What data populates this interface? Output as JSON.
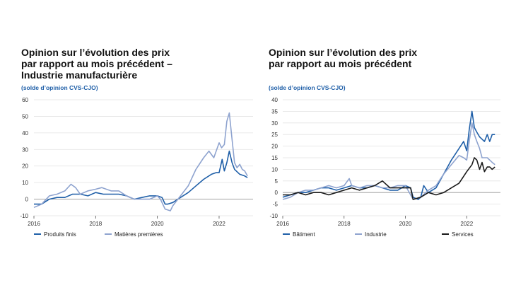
{
  "colors": {
    "dark_blue": "#1f5fa8",
    "light_blue": "#8ea3cf",
    "black": "#1a1a1a",
    "grid": "#e2e2e2"
  },
  "left": {
    "title_lines": [
      "Opinion sur l’évolution des prix",
      "par rapport au mois précédent –",
      "Industrie manufacturière"
    ],
    "subtitle": "(solde d’opinion CVS-CJO)"
  },
  "right": {
    "title_lines": [
      "Opinion sur l’évolution des prix",
      "par rapport au mois précédent"
    ],
    "subtitle": "(solde d’opinion CVS-CJO)"
  },
  "chart_data": [
    {
      "type": "line",
      "title": "Opinion sur l’évolution des prix par rapport au mois précédent – Industrie manufacturière",
      "subtitle": "(solde d’opinion CVS-CJO)",
      "xlim": [
        2016,
        2023.1
      ],
      "ylim": [
        -10,
        60
      ],
      "yticks": [
        -10,
        0,
        10,
        20,
        30,
        40,
        50,
        60
      ],
      "xticks": [
        2016,
        2018,
        2020,
        2022
      ],
      "legend_position": "bottom",
      "series": [
        {
          "name": "Produits finis",
          "color": "#1f5fa8",
          "x": [
            2016.0,
            2016.25,
            2016.5,
            2016.75,
            2017.0,
            2017.25,
            2017.5,
            2017.75,
            2018.0,
            2018.25,
            2018.5,
            2018.75,
            2019.0,
            2019.25,
            2019.5,
            2019.75,
            2020.0,
            2020.15,
            2020.25,
            2020.33,
            2020.5,
            2020.75,
            2021.0,
            2021.25,
            2021.5,
            2021.75,
            2021.9,
            2022.0,
            2022.1,
            2022.17,
            2022.25,
            2022.33,
            2022.42,
            2022.5,
            2022.67,
            2022.83,
            2022.92
          ],
          "y": [
            -3,
            -3,
            0,
            1,
            1,
            3,
            3,
            2,
            4,
            3,
            3,
            3,
            2,
            0,
            1,
            2,
            2,
            1,
            -3,
            -3,
            -2,
            1,
            4,
            8,
            12,
            15,
            16,
            16,
            24,
            17,
            22,
            29,
            22,
            18,
            15,
            14,
            13
          ]
        },
        {
          "name": "Matières premières",
          "color": "#8ea3cf",
          "x": [
            2016.0,
            2016.25,
            2016.5,
            2016.75,
            2017.0,
            2017.2,
            2017.35,
            2017.5,
            2017.75,
            2018.0,
            2018.2,
            2018.5,
            2018.75,
            2019.0,
            2019.25,
            2019.5,
            2019.75,
            2020.0,
            2020.1,
            2020.25,
            2020.42,
            2020.5,
            2020.75,
            2021.0,
            2021.25,
            2021.5,
            2021.67,
            2021.83,
            2022.0,
            2022.08,
            2022.17,
            2022.25,
            2022.33,
            2022.42,
            2022.5,
            2022.58,
            2022.67,
            2022.75,
            2022.83,
            2022.92
          ],
          "y": [
            -5,
            -3,
            2,
            3,
            5,
            9,
            7,
            3,
            5,
            6,
            7,
            5,
            5,
            2,
            0,
            0,
            0,
            2,
            0,
            -6,
            -7,
            -4,
            2,
            8,
            18,
            25,
            29,
            25,
            34,
            31,
            33,
            47,
            52,
            36,
            22,
            19,
            21,
            18,
            17,
            14
          ]
        }
      ]
    },
    {
      "type": "line",
      "title": "Opinion sur l’évolution des prix par rapport au mois précédent",
      "subtitle": "(solde d’opinion CVS-CJO)",
      "xlim": [
        2016,
        2023.1
      ],
      "ylim": [
        -10,
        40
      ],
      "yticks": [
        -10,
        -5,
        0,
        5,
        10,
        15,
        20,
        25,
        30,
        35,
        40
      ],
      "xticks": [
        2016,
        2018,
        2020,
        2022
      ],
      "legend_position": "bottom",
      "series": [
        {
          "name": "Bâtiment",
          "color": "#1f5fa8",
          "x": [
            2016.0,
            2016.25,
            2016.5,
            2016.75,
            2017.0,
            2017.25,
            2017.5,
            2017.75,
            2018.0,
            2018.25,
            2018.5,
            2018.75,
            2019.0,
            2019.25,
            2019.5,
            2019.75,
            2020.0,
            2020.17,
            2020.25,
            2020.42,
            2020.5,
            2020.6,
            2020.75,
            2021.0,
            2021.25,
            2021.5,
            2021.75,
            2021.9,
            2022.0,
            2022.08,
            2022.17,
            2022.25,
            2022.33,
            2022.42,
            2022.5,
            2022.58,
            2022.67,
            2022.75,
            2022.83,
            2022.92
          ],
          "y": [
            -2,
            -1,
            0,
            0,
            1,
            2,
            2,
            1,
            2,
            3,
            2,
            2,
            3,
            2,
            1,
            1,
            3,
            2,
            -2,
            -3,
            -2,
            3,
            0,
            2,
            8,
            14,
            19,
            22,
            18,
            27,
            35,
            28,
            26,
            24,
            23,
            22,
            25,
            22,
            25,
            25
          ]
        },
        {
          "name": "Industrie",
          "color": "#8ea3cf",
          "x": [
            2016.0,
            2016.25,
            2016.5,
            2016.75,
            2017.0,
            2017.25,
            2017.5,
            2017.75,
            2018.0,
            2018.17,
            2018.25,
            2018.5,
            2018.75,
            2019.0,
            2019.25,
            2019.5,
            2019.75,
            2020.0,
            2020.17,
            2020.25,
            2020.5,
            2020.75,
            2021.0,
            2021.25,
            2021.5,
            2021.75,
            2021.9,
            2022.0,
            2022.08,
            2022.17,
            2022.25,
            2022.33,
            2022.42,
            2022.5,
            2022.67,
            2022.83,
            2022.92
          ],
          "y": [
            -3,
            -2,
            0,
            1,
            1,
            2,
            3,
            2,
            3,
            6,
            3,
            2,
            3,
            3,
            2,
            2,
            3,
            3,
            -1,
            -3,
            -2,
            1,
            3,
            8,
            12,
            16,
            15,
            14,
            22,
            30,
            25,
            22,
            19,
            15,
            15,
            13,
            12
          ]
        },
        {
          "name": "Services",
          "color": "#1a1a1a",
          "x": [
            2016.0,
            2016.25,
            2016.5,
            2016.75,
            2017.0,
            2017.25,
            2017.5,
            2017.75,
            2018.0,
            2018.25,
            2018.5,
            2018.75,
            2019.0,
            2019.25,
            2019.5,
            2019.75,
            2020.0,
            2020.17,
            2020.25,
            2020.5,
            2020.75,
            2021.0,
            2021.25,
            2021.5,
            2021.75,
            2022.0,
            2022.17,
            2022.25,
            2022.33,
            2022.42,
            2022.5,
            2022.58,
            2022.67,
            2022.75,
            2022.83,
            2022.92
          ],
          "y": [
            -1,
            -1,
            0,
            -1,
            0,
            0,
            -1,
            0,
            1,
            2,
            1,
            2,
            3,
            5,
            2,
            2,
            2,
            2,
            -3,
            -2,
            0,
            -1,
            0,
            2,
            4,
            9,
            12,
            15,
            14,
            10,
            13,
            9,
            11,
            11,
            10,
            11
          ]
        }
      ]
    }
  ]
}
